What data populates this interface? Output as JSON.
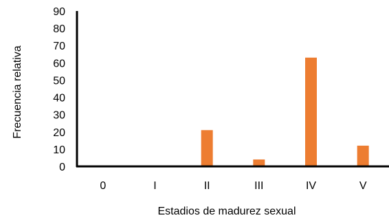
{
  "chart_data": {
    "type": "bar",
    "categories": [
      "0",
      "I",
      "II",
      "III",
      "IV",
      "V"
    ],
    "values": [
      0,
      0,
      21,
      4,
      63,
      12
    ],
    "xlabel": "Estadios de madurez sexual",
    "ylabel": "Frecuencia relativa",
    "ylim": [
      0,
      90
    ],
    "yticks": [
      "0",
      "10",
      "20",
      "30",
      "40",
      "50",
      "60",
      "70",
      "80",
      "90"
    ],
    "grid": false,
    "legend": "none",
    "bar_color": "#ed7d31",
    "axis_color": "#000000"
  }
}
